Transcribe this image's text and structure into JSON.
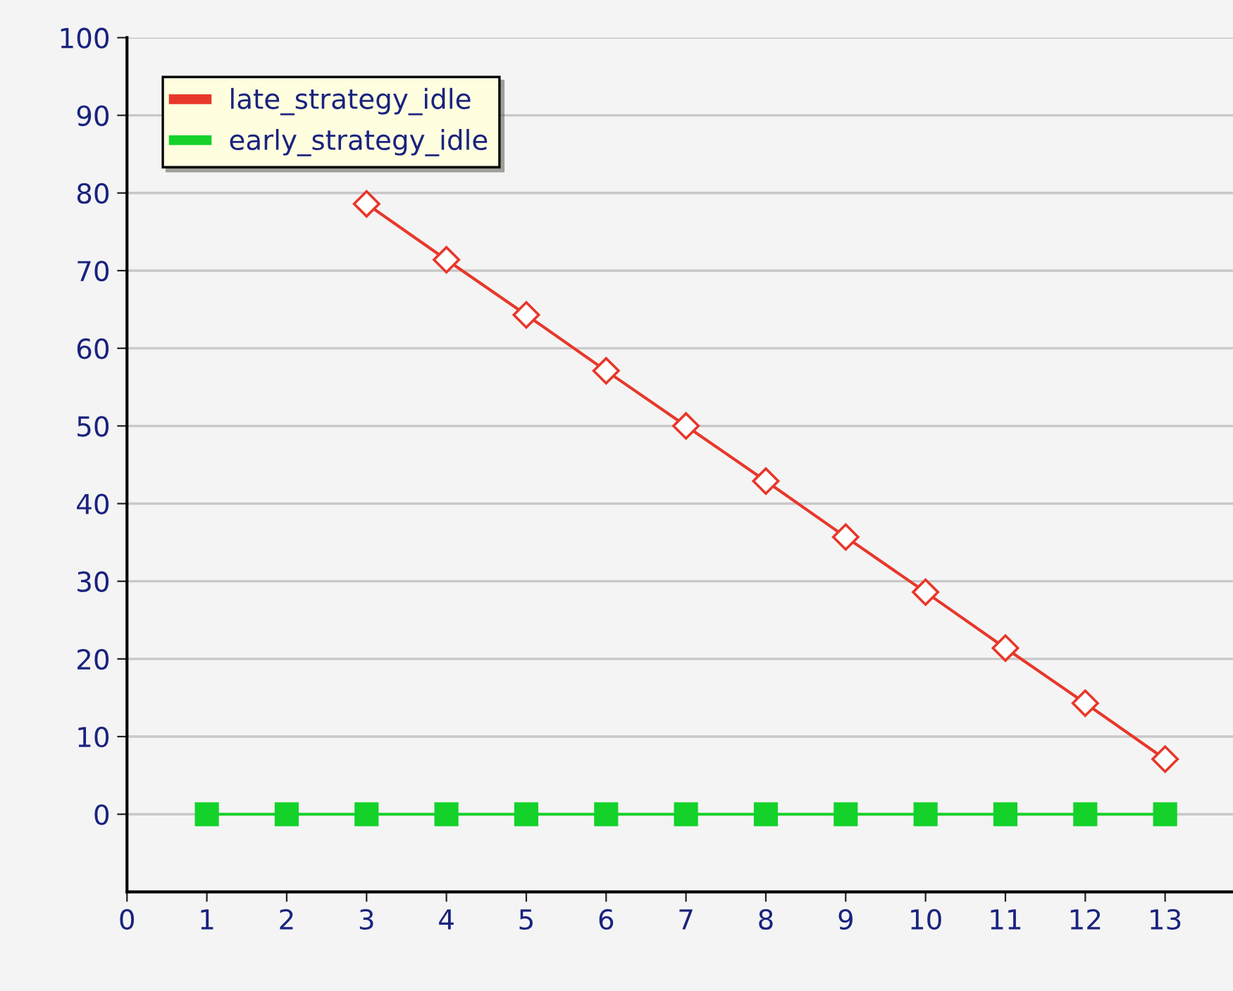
{
  "chart_data": {
    "type": "line",
    "x": [
      1,
      2,
      3,
      4,
      5,
      6,
      7,
      8,
      9,
      10,
      11,
      12,
      13
    ],
    "series": [
      {
        "name": "late_strategy_idle",
        "color": "#e8372a",
        "marker": "diamond",
        "values": [
          null,
          null,
          78.6,
          71.4,
          64.3,
          57.1,
          50,
          42.9,
          35.7,
          28.6,
          21.4,
          14.3,
          7.1
        ]
      },
      {
        "name": "early_strategy_idle",
        "color": "#14d22a",
        "marker": "square",
        "values": [
          0,
          0,
          0,
          0,
          0,
          0,
          0,
          0,
          0,
          0,
          0,
          0,
          0
        ]
      }
    ],
    "xlim": [
      0,
      13.85
    ],
    "xticks": [
      0,
      1,
      2,
      3,
      4,
      5,
      6,
      7,
      8,
      9,
      10,
      11,
      12,
      13
    ],
    "ylim": [
      -10,
      100
    ],
    "yticks": [
      0,
      10,
      20,
      30,
      40,
      50,
      60,
      70,
      80,
      90,
      100
    ],
    "grid": "y",
    "legend": "top left",
    "line_style": "solid"
  }
}
